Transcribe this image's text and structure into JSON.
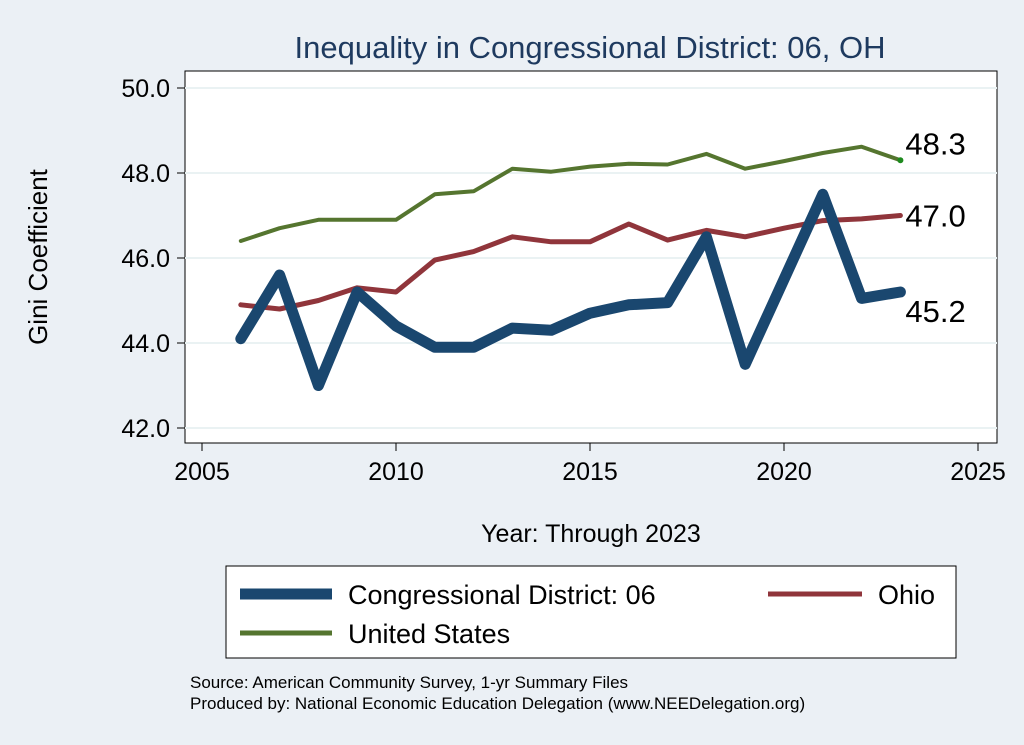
{
  "chart_data": {
    "type": "line",
    "title": "Inequality in Congressional District:  06, OH",
    "xlabel": "Year: Through 2023",
    "ylabel": "Gini Coefficient",
    "x": [
      2006,
      2007,
      2008,
      2009,
      2010,
      2011,
      2012,
      2013,
      2014,
      2015,
      2016,
      2017,
      2018,
      2019,
      2020,
      2021,
      2022,
      2023
    ],
    "xlim": [
      2005,
      2025
    ],
    "ylim": [
      42.0,
      50.0
    ],
    "xticks": [
      "2005",
      "2010",
      "2015",
      "2020",
      "2025"
    ],
    "yticks": [
      "42.0",
      "44.0",
      "46.0",
      "48.0",
      "50.0"
    ],
    "grid": "horizontal",
    "legend_position": "bottom",
    "series": [
      {
        "name": "Congressional District:  06",
        "color": "#1a476f",
        "values": [
          44.1,
          45.6,
          43.0,
          45.2,
          44.4,
          43.9,
          43.9,
          44.35,
          44.3,
          44.7,
          44.9,
          44.95,
          46.5,
          43.5,
          45.5,
          47.5,
          45.05,
          45.2
        ],
        "end_label": "45.2"
      },
      {
        "name": "Ohio",
        "color": "#90353b",
        "values": [
          44.9,
          44.8,
          45.0,
          45.3,
          45.2,
          45.95,
          46.15,
          46.5,
          46.38,
          46.38,
          46.8,
          46.42,
          46.65,
          46.5,
          46.7,
          46.88,
          46.92,
          47.0
        ],
        "end_label": "47.0"
      },
      {
        "name": "United States",
        "color": "#55752f",
        "values": [
          46.4,
          46.7,
          46.9,
          46.9,
          46.9,
          47.5,
          47.57,
          48.1,
          48.03,
          48.15,
          48.22,
          48.2,
          48.45,
          48.1,
          48.28,
          48.47,
          48.62,
          48.3
        ],
        "end_label": "48.3"
      }
    ],
    "source": "Source: American Community Survey, 1-yr Summary Files",
    "producer": "Produced by: National Economic Education Delegation (www.NEEDelegation.org)"
  }
}
